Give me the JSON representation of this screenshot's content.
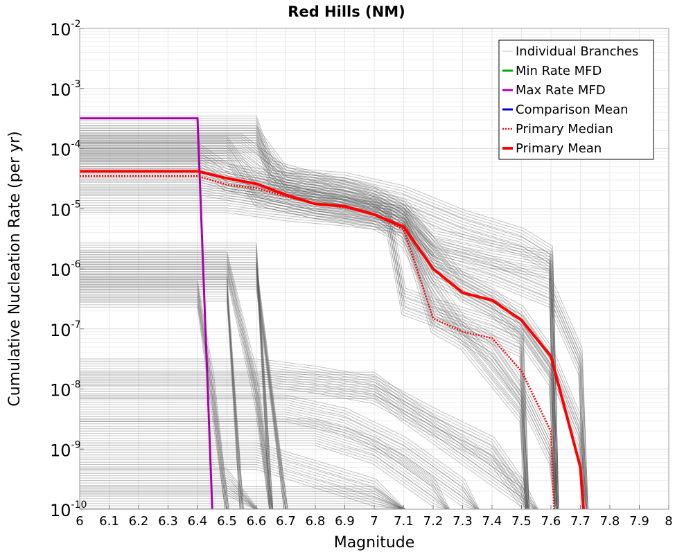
{
  "chart_data": {
    "type": "line",
    "title": "Red Hills (NM)",
    "xlabel": "Magnitude",
    "ylabel": "Cumulative Nucleation Rate (per yr)",
    "xlim": [
      6,
      8
    ],
    "ylim": [
      1e-10,
      0.01
    ],
    "y_scale": "log",
    "grid": true,
    "legend_position": "top-right",
    "x_ticks": [
      "6",
      "6.1",
      "6.2",
      "6.3",
      "6.4",
      "6.5",
      "6.6",
      "6.7",
      "6.8",
      "6.9",
      "7",
      "7.1",
      "7.2",
      "7.3",
      "7.4",
      "7.5",
      "7.6",
      "7.7",
      "7.8",
      "7.9",
      "8"
    ],
    "y_ticks": [
      {
        "value": 1e-10,
        "base": "10",
        "exp": "-10"
      },
      {
        "value": 1e-09,
        "base": "10",
        "exp": "-9"
      },
      {
        "value": 1e-08,
        "base": "10",
        "exp": "-8"
      },
      {
        "value": 1e-07,
        "base": "10",
        "exp": "-7"
      },
      {
        "value": 1e-06,
        "base": "10",
        "exp": "-6"
      },
      {
        "value": 1e-05,
        "base": "10",
        "exp": "-5"
      },
      {
        "value": 0.0001,
        "base": "10",
        "exp": "-4"
      },
      {
        "value": 0.001,
        "base": "10",
        "exp": "-3"
      },
      {
        "value": 0.01,
        "base": "10",
        "exp": "-2"
      }
    ],
    "series": [
      {
        "name": "Individual Branches",
        "color": "#555555",
        "style": "thin",
        "note_count": 300,
        "branches": [
          {
            "plateau": 0.00022,
            "drop_at": 6.6,
            "values": [
              [
                6.6,
                0.00022
              ],
              [
                6.65,
                4e-05
              ],
              [
                6.8,
                2.5e-05
              ],
              [
                7.0,
                1.2e-05
              ],
              [
                7.1,
                9e-06
              ],
              [
                7.2,
                3e-06
              ],
              [
                7.4,
                1.8e-06
              ],
              [
                7.6,
                1.2e-06
              ],
              [
                7.62,
                1e-10
              ]
            ]
          },
          {
            "plateau": 0.00015,
            "drop_at": 6.6,
            "values": [
              [
                6.6,
                0.00015
              ],
              [
                6.7,
                3e-05
              ],
              [
                6.9,
                2e-05
              ],
              [
                7.0,
                1.4e-05
              ],
              [
                7.1,
                7e-06
              ],
              [
                7.2,
                1e-06
              ],
              [
                7.4,
                3e-07
              ],
              [
                7.5,
                1e-07
              ],
              [
                7.6,
                2e-08
              ],
              [
                7.62,
                1e-10
              ]
            ]
          },
          {
            "plateau": 0.00011,
            "drop_at": 6.55,
            "values": [
              [
                6.55,
                0.00011
              ],
              [
                6.7,
                3e-05
              ],
              [
                6.9,
                2.5e-05
              ],
              [
                7.1,
                1.5e-05
              ],
              [
                7.3,
                6e-06
              ],
              [
                7.5,
                3e-06
              ],
              [
                7.6,
                1.5e-06
              ],
              [
                7.62,
                1e-10
              ]
            ]
          },
          {
            "plateau": 0.0001,
            "drop_at": 6.5,
            "values": [
              [
                6.5,
                0.0001
              ],
              [
                6.6,
                2e-05
              ],
              [
                6.8,
                1.2e-05
              ],
              [
                7.0,
                9e-06
              ],
              [
                7.1,
                6e-06
              ],
              [
                7.2,
                1.5e-07
              ],
              [
                7.3,
                8e-08
              ],
              [
                7.4,
                2e-08
              ],
              [
                7.5,
                5e-09
              ],
              [
                7.52,
                1e-10
              ]
            ]
          },
          {
            "plateau": 8e-05,
            "drop_at": 6.4,
            "values": [
              [
                6.4,
                8e-05
              ],
              [
                6.5,
                3.5e-05
              ],
              [
                6.7,
                2.5e-05
              ],
              [
                6.9,
                2e-05
              ],
              [
                7.0,
                1.5e-05
              ],
              [
                7.1,
                8e-06
              ],
              [
                7.2,
                2e-06
              ],
              [
                7.3,
                5e-07
              ],
              [
                7.5,
                1.5e-07
              ],
              [
                7.6,
                3e-08
              ],
              [
                7.7,
                2e-09
              ],
              [
                7.72,
                1e-10
              ]
            ]
          },
          {
            "plateau": 5e-05,
            "drop_at": 6.4,
            "values": [
              [
                6.4,
                5e-05
              ],
              [
                6.6,
                2.5e-05
              ],
              [
                6.8,
                1.5e-05
              ],
              [
                7.0,
                1e-05
              ],
              [
                7.1,
                4e-06
              ],
              [
                7.2,
                5e-07
              ],
              [
                7.3,
                1e-07
              ],
              [
                7.4,
                5e-08
              ],
              [
                7.5,
                1e-08
              ],
              [
                7.6,
                1e-09
              ],
              [
                7.62,
                1e-10
              ]
            ]
          },
          {
            "plateau": 3e-05,
            "drop_at": 6.4,
            "values": [
              [
                6.4,
                3e-05
              ],
              [
                6.6,
                2e-05
              ],
              [
                6.8,
                1.2e-05
              ],
              [
                7.0,
                8e-06
              ],
              [
                7.05,
                6e-06
              ],
              [
                7.1,
                3e-07
              ],
              [
                7.2,
                2e-07
              ],
              [
                7.4,
                1e-07
              ],
              [
                7.5,
                6e-08
              ],
              [
                7.52,
                1e-10
              ]
            ]
          },
          {
            "plateau": 1.5e-05,
            "drop_at": 6.5,
            "values": [
              [
                6.5,
                1.5e-05
              ],
              [
                6.7,
                1.1e-05
              ],
              [
                6.9,
                9e-06
              ],
              [
                7.1,
                7e-06
              ],
              [
                7.2,
                2e-06
              ],
              [
                7.4,
                1e-06
              ],
              [
                7.6,
                4e-07
              ],
              [
                7.7,
                3e-08
              ],
              [
                7.72,
                1e-10
              ]
            ]
          },
          {
            "plateau": 1.7e-06,
            "drop_at": 6.6,
            "values": [
              [
                6.6,
                1.7e-06
              ],
              [
                6.65,
                1e-10
              ]
            ]
          },
          {
            "plateau": 1.2e-06,
            "drop_at": 6.5,
            "values": [
              [
                6.5,
                1.2e-06
              ],
              [
                6.6,
                1e-08
              ],
              [
                6.65,
                1e-10
              ]
            ]
          },
          {
            "plateau": 8e-07,
            "drop_at": 6.6,
            "values": [
              [
                6.6,
                8e-07
              ],
              [
                6.7,
                1e-10
              ]
            ]
          },
          {
            "plateau": 5e-07,
            "drop_at": 6.5,
            "values": [
              [
                6.5,
                5e-07
              ],
              [
                6.55,
                1e-10
              ]
            ]
          },
          {
            "plateau": 4e-07,
            "drop_at": 6.4,
            "values": [
              [
                6.4,
                4e-07
              ],
              [
                6.45,
                1e-08
              ],
              [
                6.5,
                1e-10
              ]
            ]
          },
          {
            "plateau": 2e-08,
            "drop_at": 6.6,
            "values": [
              [
                6.6,
                2e-08
              ],
              [
                6.8,
                1.5e-08
              ],
              [
                7.0,
                1e-08
              ],
              [
                7.2,
                3e-09
              ],
              [
                7.4,
                1e-09
              ],
              [
                7.5,
                2e-10
              ],
              [
                7.52,
                1e-10
              ]
            ]
          },
          {
            "plateau": 1.2e-08,
            "drop_at": 7.0,
            "values": [
              [
                7.0,
                1.2e-08
              ],
              [
                7.1,
                5e-09
              ],
              [
                7.3,
                1e-09
              ],
              [
                7.5,
                2e-10
              ],
              [
                7.55,
                1e-10
              ]
            ]
          },
          {
            "plateau": 5e-09,
            "drop_at": 6.7,
            "values": [
              [
                6.7,
                5e-09
              ],
              [
                6.9,
                3e-09
              ],
              [
                7.1,
                1e-09
              ],
              [
                7.3,
                2e-10
              ],
              [
                7.35,
                1e-10
              ]
            ]
          },
          {
            "plateau": 2e-09,
            "drop_at": 6.8,
            "values": [
              [
                6.8,
                2e-09
              ],
              [
                7.0,
                1e-09
              ],
              [
                7.2,
                2e-10
              ],
              [
                7.25,
                1e-10
              ]
            ]
          },
          {
            "plateau": 8e-10,
            "drop_at": 6.6,
            "values": [
              [
                6.6,
                8e-10
              ],
              [
                6.8,
                4e-10
              ],
              [
                7.0,
                2e-10
              ],
              [
                7.1,
                1e-10
              ]
            ]
          },
          {
            "plateau": 3e-10,
            "drop_at": 6.5,
            "values": [
              [
                6.5,
                3e-10
              ],
              [
                6.6,
                1e-10
              ]
            ]
          },
          {
            "plateau": 1.5e-10,
            "drop_at": 7.0,
            "values": [
              [
                7.0,
                1.5e-10
              ],
              [
                7.1,
                1e-10
              ]
            ]
          }
        ]
      },
      {
        "name": "Min Rate MFD",
        "color": "#00aa00",
        "style": "solid",
        "x": [],
        "values": []
      },
      {
        "name": "Max Rate MFD",
        "color": "#aa00aa",
        "style": "solid",
        "x": [
          6.0,
          6.4,
          6.45
        ],
        "values": [
          0.00032,
          0.00032,
          1e-10
        ]
      },
      {
        "name": "Comparison Mean",
        "color": "#0000dd",
        "style": "solid",
        "x": [],
        "values": []
      },
      {
        "name": "Primary Median",
        "color": "#ff0000",
        "style": "dotted",
        "x": [
          6.0,
          6.4,
          6.5,
          6.6,
          6.7,
          6.8,
          6.9,
          7.0,
          7.1,
          7.2,
          7.3,
          7.4,
          7.5,
          7.6,
          7.61
        ],
        "values": [
          3.5e-05,
          3.5e-05,
          2.5e-05,
          2.2e-05,
          1.6e-05,
          1.2e-05,
          1.05e-05,
          8e-06,
          4.5e-06,
          1.5e-07,
          9e-08,
          7e-08,
          2e-08,
          2e-09,
          1e-10
        ]
      },
      {
        "name": "Primary Mean",
        "color": "#ff0000",
        "style": "thick",
        "x": [
          6.0,
          6.4,
          6.5,
          6.6,
          6.7,
          6.8,
          6.9,
          7.0,
          7.1,
          7.2,
          7.3,
          7.4,
          7.5,
          7.6,
          7.7,
          7.71
        ],
        "values": [
          4.2e-05,
          4.2e-05,
          3.2e-05,
          2.6e-05,
          1.7e-05,
          1.2e-05,
          1.1e-05,
          8e-06,
          5e-06,
          1e-06,
          4e-07,
          3e-07,
          1.4e-07,
          3.5e-08,
          5e-10,
          1e-10
        ]
      }
    ],
    "legend": [
      {
        "label": "Individual Branches",
        "color": "#bbbbbb",
        "style": "thin"
      },
      {
        "label": "Min Rate MFD",
        "color": "#00aa00",
        "style": "solid"
      },
      {
        "label": "Max Rate MFD",
        "color": "#aa00aa",
        "style": "solid"
      },
      {
        "label": "Comparison Mean",
        "color": "#0000dd",
        "style": "solid"
      },
      {
        "label": "Primary Median",
        "color": "#ff0000",
        "style": "dotted"
      },
      {
        "label": "Primary Mean",
        "color": "#ff0000",
        "style": "thick"
      }
    ]
  }
}
